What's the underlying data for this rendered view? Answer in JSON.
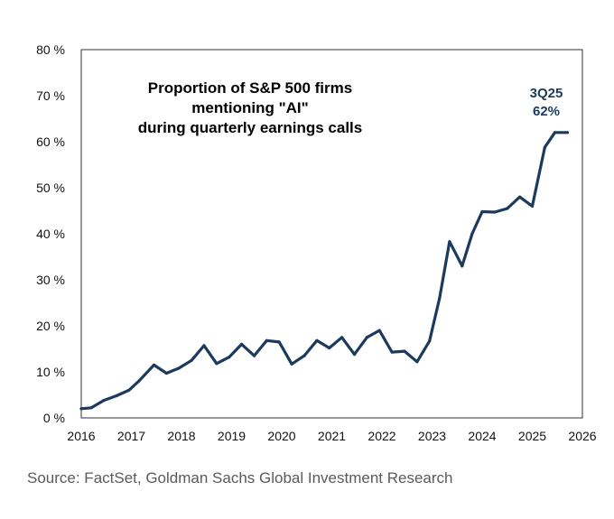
{
  "chart_data": {
    "type": "line",
    "title": [
      "Proportion of S&P 500 firms",
      "mentioning \"AI\"",
      "during quarterly earnings calls"
    ],
    "xlabel": "",
    "ylabel": "",
    "xlim": [
      2016,
      2026
    ],
    "ylim": [
      0,
      80
    ],
    "x_ticks": [
      "2016",
      "2017",
      "2018",
      "2019",
      "2020",
      "2021",
      "2022",
      "2023",
      "2024",
      "2025",
      "2026"
    ],
    "y_ticks": [
      "0 %",
      "10 %",
      "20 %",
      "30 %",
      "40 %",
      "50 %",
      "60 %",
      "70 %",
      "80 %"
    ],
    "grid": false,
    "line_color": "#1c3a5e",
    "series": [
      {
        "name": "Proportion of S&P 500 firms mentioning AI",
        "x": [
          2016.0,
          2016.2,
          2016.45,
          2016.7,
          2016.95,
          2017.15,
          2017.45,
          2017.7,
          2017.95,
          2018.2,
          2018.45,
          2018.7,
          2018.95,
          2019.2,
          2019.45,
          2019.7,
          2019.95,
          2020.2,
          2020.45,
          2020.7,
          2020.95,
          2021.2,
          2021.45,
          2021.7,
          2021.95,
          2022.2,
          2022.45,
          2022.7,
          2022.95,
          2023.15,
          2023.35,
          2023.6,
          2023.8,
          2024.0,
          2024.25,
          2024.5,
          2024.75,
          2025.0,
          2025.25,
          2025.45,
          2025.7
        ],
        "values": [
          2,
          2.2,
          3.8,
          4.8,
          6,
          8,
          11.5,
          9.7,
          10.8,
          12.5,
          15.7,
          11.8,
          13.2,
          16,
          13.5,
          16.8,
          16.5,
          11.7,
          13.5,
          16.8,
          15.2,
          17.5,
          13.8,
          17.5,
          19,
          14.3,
          14.5,
          12.2,
          16.7,
          26,
          38.3,
          33,
          40,
          44.8,
          44.7,
          45.5,
          48,
          46,
          58.8,
          62,
          62
        ]
      }
    ],
    "annotation": {
      "label": "3Q25",
      "value": "62%",
      "color": "#1c3a5e"
    },
    "source": "Source: FactSet, Goldman Sachs Global Investment Research"
  }
}
